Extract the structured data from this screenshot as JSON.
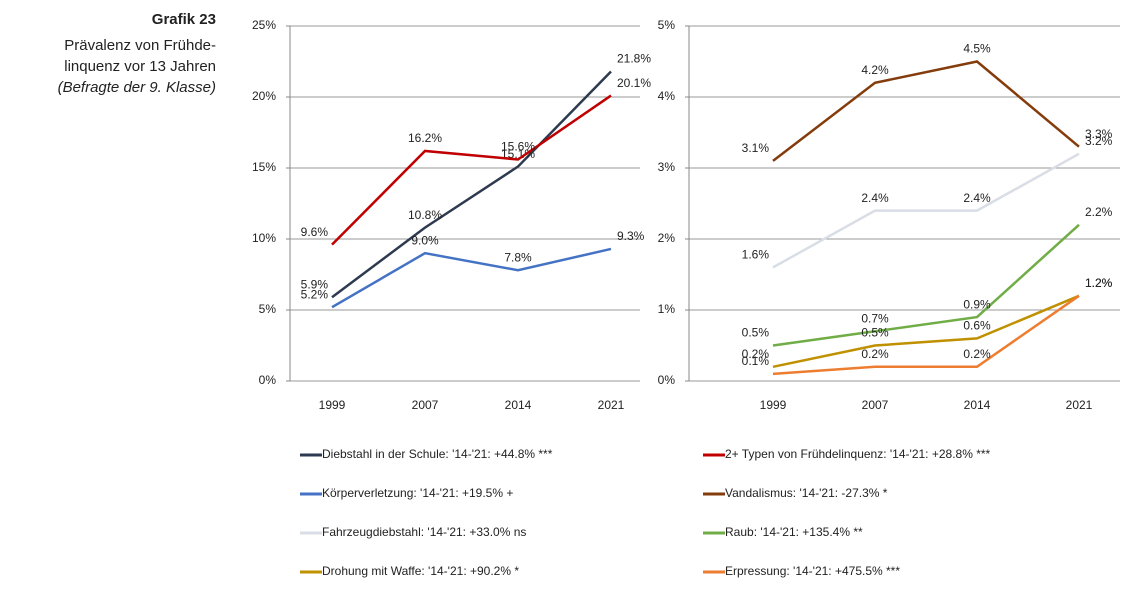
{
  "caption": {
    "label": "Grafik 23",
    "lines": [
      "Prävalenz von Frühde-",
      "linquenz vor 13 Jahren",
      "(Befragte der 9. Klasse)"
    ]
  },
  "chart_data": [
    {
      "type": "line",
      "categories": [
        "1999",
        "2007",
        "2014",
        "2021"
      ],
      "ylim": [
        0,
        25
      ],
      "yticks": [
        {
          "value": 0,
          "label": "0%"
        },
        {
          "value": 5,
          "label": "5%"
        },
        {
          "value": 10,
          "label": "10%"
        },
        {
          "value": 15,
          "label": "15%"
        },
        {
          "value": 20,
          "label": "20%"
        },
        {
          "value": 25,
          "label": "25%"
        }
      ],
      "grid": true,
      "series": [
        {
          "name": "Diebstahl in der Schule: '14-'21: +44.8% ***",
          "color": "#2e3a4f",
          "values": [
            5.9,
            10.8,
            15.1,
            21.8
          ],
          "value_labels": [
            "5.9%",
            "10.8%",
            "15.1%",
            "21.8%"
          ]
        },
        {
          "name": "2+ Typen von Frühdelinquenz: '14-'21: +28.8% ***",
          "color": "#c00000",
          "values": [
            9.6,
            16.2,
            15.6,
            20.1
          ],
          "value_labels": [
            "9.6%",
            "16.2%",
            "15.6%",
            "20.1%"
          ]
        },
        {
          "name": "Körperverletzung: '14-'21: +19.5%  +",
          "color": "#4472c4",
          "values": [
            5.2,
            9.0,
            7.8,
            9.3
          ],
          "value_labels": [
            "5.2%",
            "9.0%",
            "7.8%",
            "9.3%"
          ]
        }
      ]
    },
    {
      "type": "line",
      "categories": [
        "1999",
        "2007",
        "2014",
        "2021"
      ],
      "ylim": [
        0,
        5
      ],
      "yticks": [
        {
          "value": 0,
          "label": "0%"
        },
        {
          "value": 1,
          "label": "1%"
        },
        {
          "value": 2,
          "label": "2%"
        },
        {
          "value": 3,
          "label": "3%"
        },
        {
          "value": 4,
          "label": "4%"
        },
        {
          "value": 5,
          "label": "5%"
        }
      ],
      "grid": true,
      "series": [
        {
          "name": "Vandalismus: '14-'21: -27.3% *",
          "color": "#843c0c",
          "values": [
            3.1,
            4.2,
            4.5,
            3.3
          ],
          "value_labels": [
            "3.1%",
            "4.2%",
            "4.5%",
            "3.3%"
          ]
        },
        {
          "name": "Fahrzeugdiebstahl: '14-'21: +33.0%  ns",
          "color": "#d9dde6",
          "values": [
            1.6,
            2.4,
            2.4,
            3.2
          ],
          "value_labels": [
            "1.6%",
            "2.4%",
            "2.4%",
            "3.2%"
          ]
        },
        {
          "name": "Raub: '14-'21: +135.4% **",
          "color": "#70ad47",
          "values": [
            0.5,
            0.7,
            0.9,
            2.2
          ],
          "value_labels": [
            "0.5%",
            "0.7%",
            "0.9%",
            "2.2%"
          ]
        },
        {
          "name": "Drohung mit Waffe: '14-'21: +90.2% *",
          "color": "#bf9000",
          "values": [
            0.2,
            0.5,
            0.6,
            1.2
          ],
          "value_labels": [
            "0.2%",
            "0.5%",
            "0.6%",
            "1.2%"
          ]
        },
        {
          "name": "Erpressung: '14-'21: +475.5% ***",
          "color": "#ed7d31",
          "values": [
            0.1,
            0.2,
            0.2,
            1.2
          ],
          "value_labels": [
            "0.1%",
            "0.2%",
            "0.2%",
            "1.2%"
          ]
        }
      ]
    }
  ]
}
